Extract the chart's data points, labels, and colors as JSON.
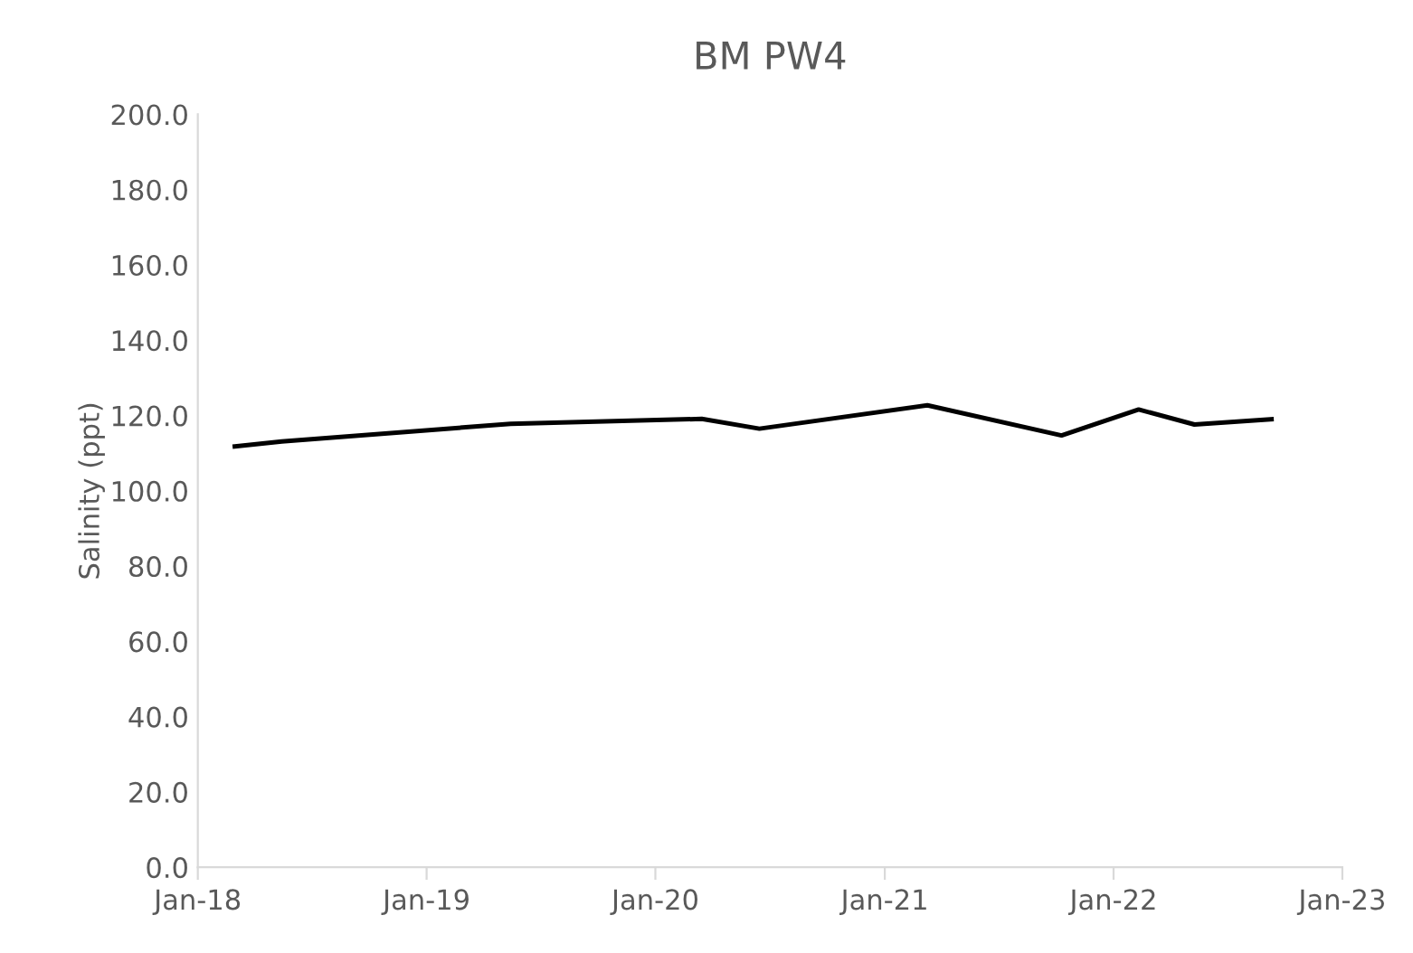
{
  "chart_data": {
    "type": "line",
    "title": "BM PW4",
    "ylabel": "Salinity (ppt)",
    "x": [
      "2018-03-01",
      "2018-05-15",
      "2019-05-15",
      "2020-03-15",
      "2020-06-15",
      "2021-03-10",
      "2021-10-10",
      "2022-02-10",
      "2022-05-10",
      "2022-09-10"
    ],
    "series": [
      {
        "color": "#000000",
        "values": [
          111.8,
          113.1,
          117.8,
          119.1,
          116.5,
          122.7,
          114.7,
          121.6,
          117.6,
          119.0
        ]
      }
    ],
    "xlim": [
      "2018-01-01",
      "2023-01-01"
    ],
    "xticks": [
      {
        "value": "2018-01-01",
        "label": "Jan-18"
      },
      {
        "value": "2019-01-01",
        "label": "Jan-19"
      },
      {
        "value": "2020-01-01",
        "label": "Jan-20"
      },
      {
        "value": "2021-01-01",
        "label": "Jan-21"
      },
      {
        "value": "2022-01-01",
        "label": "Jan-22"
      },
      {
        "value": "2023-01-01",
        "label": "Jan-23"
      }
    ],
    "ylim": [
      0,
      200
    ],
    "yticks": [
      {
        "value": 0,
        "label": "0.0"
      },
      {
        "value": 20,
        "label": "20.0"
      },
      {
        "value": 40,
        "label": "40.0"
      },
      {
        "value": 60,
        "label": "60.0"
      },
      {
        "value": 80,
        "label": "80.0"
      },
      {
        "value": 100,
        "label": "100.0"
      },
      {
        "value": 120,
        "label": "120.0"
      },
      {
        "value": 140,
        "label": "140.0"
      },
      {
        "value": 160,
        "label": "160.0"
      },
      {
        "value": 180,
        "label": "180.0"
      },
      {
        "value": 200,
        "label": "200.0"
      }
    ],
    "grid": false,
    "legend": false,
    "marker": "none",
    "line_style": "solid"
  }
}
